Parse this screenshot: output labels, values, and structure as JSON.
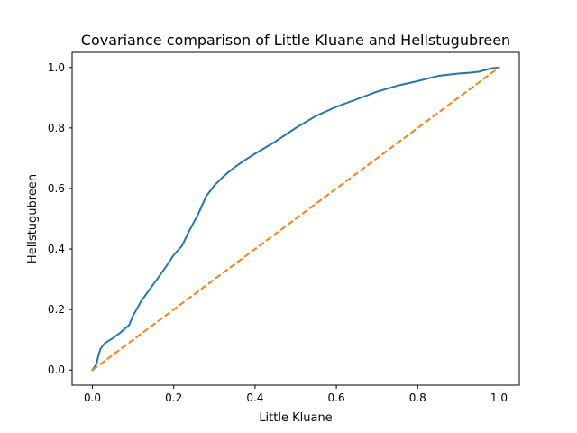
{
  "chart_data": {
    "type": "line",
    "title": "Covariance comparison of Little Kluane and Hellstugubreen",
    "xlabel": "Little Kluane",
    "ylabel": "Hellstugubreen",
    "xlim": [
      -0.05,
      1.05
    ],
    "ylim": [
      -0.05,
      1.05
    ],
    "xticks": [
      0.0,
      0.2,
      0.4,
      0.6,
      0.8,
      1.0
    ],
    "yticks": [
      0.0,
      0.2,
      0.4,
      0.6,
      0.8,
      1.0
    ],
    "xtick_labels": [
      "0.0",
      "0.2",
      "0.4",
      "0.6",
      "0.8",
      "1.0"
    ],
    "ytick_labels": [
      "0.0",
      "0.2",
      "0.4",
      "0.6",
      "0.8",
      "1.0"
    ],
    "grid": false,
    "legend": "none",
    "series": [
      {
        "color": "#1f77b4",
        "style": "solid",
        "x": [
          0.0,
          0.01,
          0.015,
          0.02,
          0.025,
          0.03,
          0.04,
          0.05,
          0.06,
          0.07,
          0.08,
          0.09,
          0.1,
          0.12,
          0.14,
          0.16,
          0.18,
          0.2,
          0.22,
          0.24,
          0.26,
          0.28,
          0.3,
          0.32,
          0.34,
          0.36,
          0.38,
          0.4,
          0.45,
          0.5,
          0.55,
          0.6,
          0.65,
          0.7,
          0.75,
          0.8,
          0.82,
          0.85,
          0.88,
          0.9,
          0.93,
          0.95,
          0.97,
          0.98,
          1.0
        ],
        "y": [
          0.0,
          0.02,
          0.05,
          0.07,
          0.08,
          0.088,
          0.097,
          0.105,
          0.115,
          0.125,
          0.137,
          0.148,
          0.18,
          0.228,
          0.265,
          0.302,
          0.34,
          0.38,
          0.41,
          0.465,
          0.515,
          0.575,
          0.61,
          0.637,
          0.66,
          0.68,
          0.698,
          0.715,
          0.755,
          0.8,
          0.84,
          0.87,
          0.895,
          0.92,
          0.94,
          0.955,
          0.962,
          0.972,
          0.977,
          0.98,
          0.983,
          0.986,
          0.993,
          0.997,
          1.0
        ]
      },
      {
        "color": "#ff7f0e",
        "style": "dashed",
        "x": [
          0.0,
          1.0
        ],
        "y": [
          0.0,
          1.0
        ]
      }
    ]
  }
}
